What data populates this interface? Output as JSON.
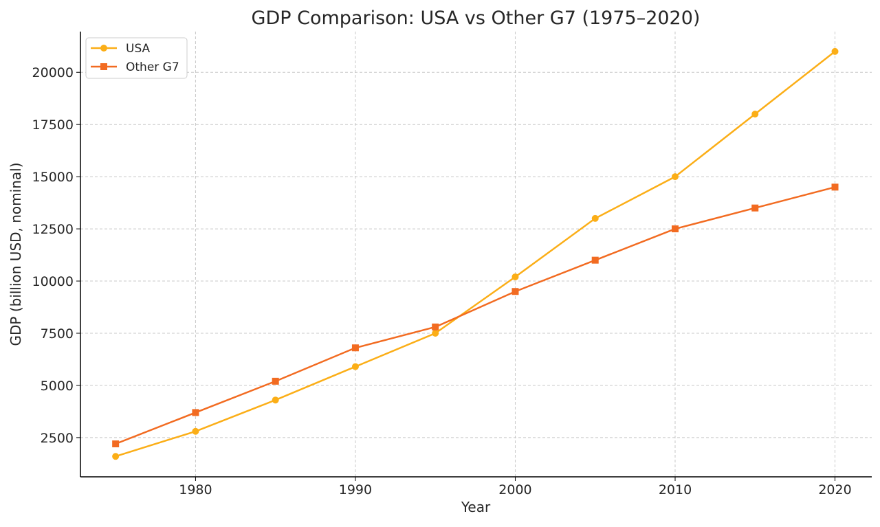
{
  "chart_data": {
    "type": "line",
    "title": "GDP Comparison: USA vs Other G7 (1975–2020)",
    "xlabel": "Year",
    "ylabel": "GDP (billion USD, nominal)",
    "x": [
      1975,
      1980,
      1985,
      1990,
      1995,
      2000,
      2005,
      2010,
      2015,
      2020
    ],
    "xlim": [
      1972.8,
      2022.3
    ],
    "ylim": [
      620,
      21950
    ],
    "xticks": [
      1980,
      1990,
      2000,
      2010,
      2020
    ],
    "yticks": [
      2500,
      5000,
      7500,
      10000,
      12500,
      15000,
      17500,
      20000
    ],
    "grid": true,
    "legend_position": "top-left",
    "series": [
      {
        "name": "USA",
        "color": "#FBAE17",
        "marker": "circle",
        "values": [
          1600,
          2800,
          4300,
          5900,
          7500,
          10200,
          13000,
          15000,
          18000,
          21000
        ]
      },
      {
        "name": "Other G7",
        "color": "#F26B21",
        "marker": "square",
        "values": [
          2200,
          3700,
          5200,
          6800,
          7800,
          9500,
          11000,
          12500,
          13500,
          14500
        ]
      }
    ]
  }
}
